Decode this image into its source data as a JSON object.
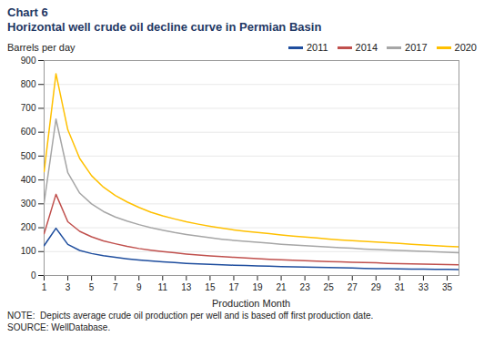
{
  "chart_data": {
    "type": "line",
    "title": "Chart 6",
    "subtitle": "Horizontal well crude oil decline curve in Permian Basin",
    "xlabel": "Production Month",
    "ylabel": "Barrels per day",
    "annotations": [
      "NOTE:  Depicts average crude oil production per well and is based off first production date.",
      "SOURCE: WellDatabase."
    ],
    "x": [
      1,
      2,
      3,
      4,
      5,
      6,
      7,
      8,
      9,
      10,
      11,
      12,
      13,
      14,
      15,
      16,
      17,
      18,
      19,
      20,
      21,
      22,
      23,
      24,
      25,
      26,
      27,
      28,
      29,
      30,
      31,
      32,
      33,
      34,
      35,
      36
    ],
    "series": [
      {
        "name": "2011",
        "color": "#1f4e9e",
        "values": [
          125,
          198,
          130,
          105,
          92,
          83,
          76,
          70,
          65,
          61,
          57,
          54,
          51,
          49,
          47,
          45,
          43,
          42,
          40,
          39,
          37,
          36,
          35,
          34,
          33,
          32,
          31,
          30,
          29,
          29,
          28,
          27,
          27,
          26,
          26,
          25
        ]
      },
      {
        "name": "2014",
        "color": "#c0504d",
        "values": [
          175,
          340,
          225,
          185,
          162,
          145,
          133,
          122,
          113,
          106,
          100,
          95,
          90,
          86,
          82,
          79,
          76,
          73,
          71,
          68,
          66,
          64,
          62,
          60,
          58,
          57,
          55,
          54,
          53,
          51,
          50,
          49,
          48,
          47,
          46,
          45
        ]
      },
      {
        "name": "2017",
        "color": "#a6a6a6",
        "values": [
          305,
          655,
          430,
          345,
          300,
          268,
          245,
          228,
          213,
          200,
          190,
          180,
          172,
          165,
          158,
          152,
          147,
          143,
          139,
          135,
          131,
          128,
          125,
          122,
          119,
          116,
          114,
          111,
          109,
          107,
          105,
          103,
          101,
          99,
          97,
          95
        ]
      },
      {
        "name": "2020",
        "color": "#ffc000",
        "values": [
          435,
          845,
          610,
          490,
          418,
          370,
          335,
          308,
          285,
          265,
          250,
          237,
          225,
          215,
          206,
          198,
          191,
          185,
          180,
          175,
          170,
          165,
          161,
          157,
          153,
          149,
          146,
          143,
          140,
          137,
          134,
          131,
          128,
          125,
          122,
          120
        ]
      }
    ],
    "xlim": [
      1,
      36
    ],
    "ylim": [
      0,
      900
    ],
    "xticks": [
      1,
      3,
      5,
      7,
      9,
      11,
      13,
      15,
      17,
      19,
      21,
      23,
      25,
      27,
      29,
      31,
      33,
      35
    ],
    "yticks": [
      0,
      100,
      200,
      300,
      400,
      500,
      600,
      700,
      800,
      900
    ],
    "grid": "y",
    "legend": "top-right"
  }
}
